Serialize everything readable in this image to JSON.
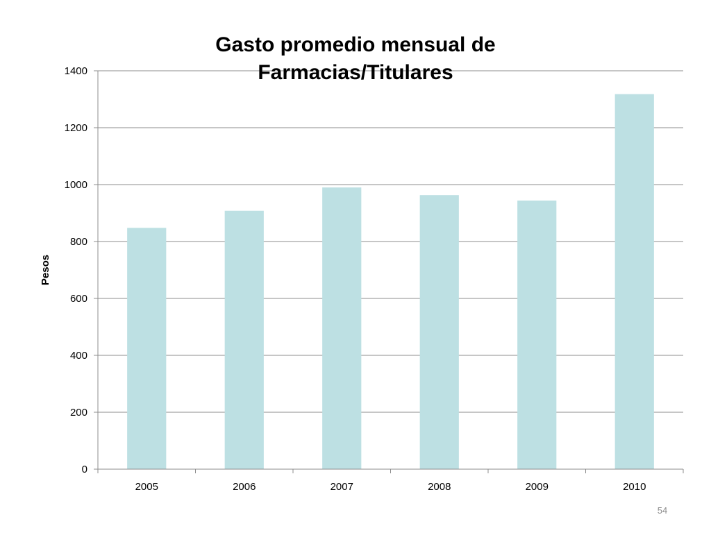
{
  "slide": {
    "page_number": "54"
  },
  "chart_data": {
    "type": "bar",
    "title_lines": [
      "Gasto promedio mensual de",
      "Farmacias/Titulares"
    ],
    "xlabel": "",
    "ylabel": "Pesos",
    "categories": [
      "2005",
      "2006",
      "2007",
      "2008",
      "2009",
      "2010"
    ],
    "series": [
      {
        "values": [
          848,
          908,
          990,
          963,
          944,
          1318
        ]
      }
    ],
    "ylim": [
      0,
      1400
    ],
    "yticks": [
      0,
      200,
      400,
      600,
      800,
      1000,
      1200,
      1400
    ],
    "grid": true,
    "legend": "none",
    "colors": {
      "bar": "#bde0e3",
      "grid": "#8c8c8c",
      "axis": "#8c8c8c"
    }
  }
}
